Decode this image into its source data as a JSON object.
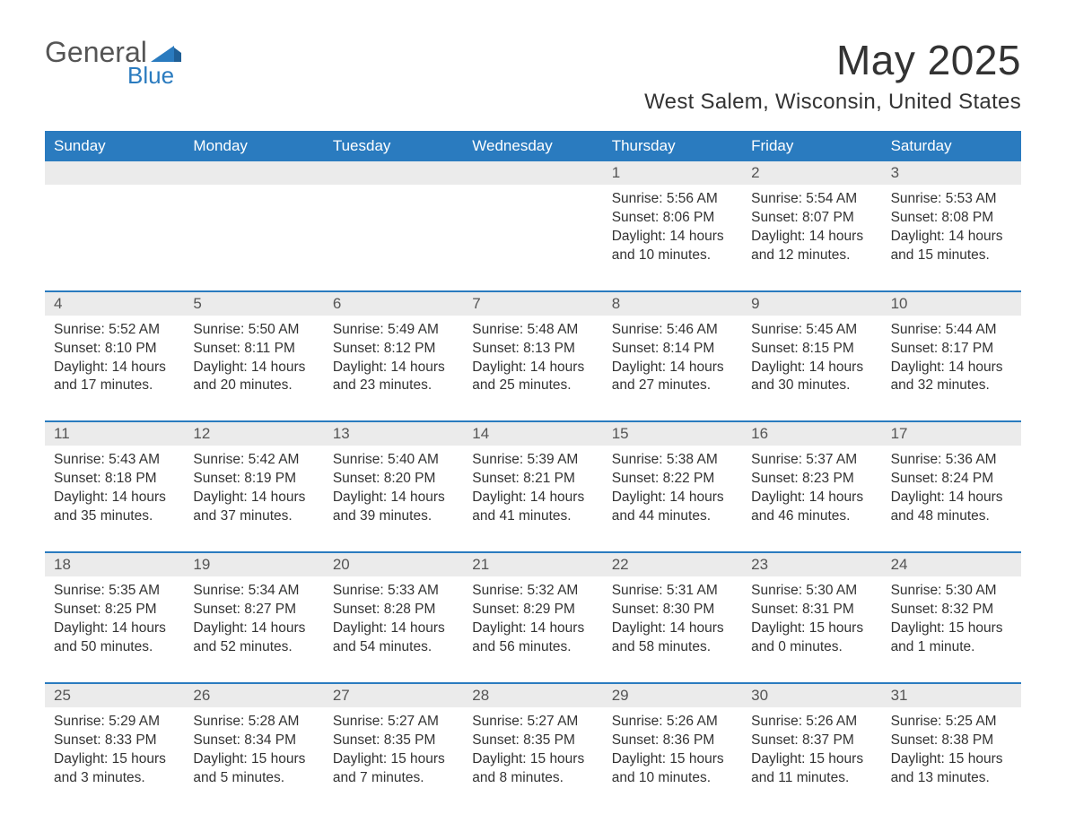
{
  "logo": {
    "word1": "General",
    "word2": "Blue"
  },
  "title": "May 2025",
  "location": "West Salem, Wisconsin, United States",
  "colors": {
    "header_bg": "#2a7bbf",
    "header_text": "#ffffff",
    "band_bg": "#ebebeb",
    "rule": "#2a7bbf",
    "text": "#333333",
    "muted": "#555555",
    "page_bg": "#ffffff"
  },
  "weekdays": [
    "Sunday",
    "Monday",
    "Tuesday",
    "Wednesday",
    "Thursday",
    "Friday",
    "Saturday"
  ],
  "weeks": [
    [
      null,
      null,
      null,
      null,
      {
        "n": "1",
        "sunrise": "5:56 AM",
        "sunset": "8:06 PM",
        "daylight": "14 hours and 10 minutes."
      },
      {
        "n": "2",
        "sunrise": "5:54 AM",
        "sunset": "8:07 PM",
        "daylight": "14 hours and 12 minutes."
      },
      {
        "n": "3",
        "sunrise": "5:53 AM",
        "sunset": "8:08 PM",
        "daylight": "14 hours and 15 minutes."
      }
    ],
    [
      {
        "n": "4",
        "sunrise": "5:52 AM",
        "sunset": "8:10 PM",
        "daylight": "14 hours and 17 minutes."
      },
      {
        "n": "5",
        "sunrise": "5:50 AM",
        "sunset": "8:11 PM",
        "daylight": "14 hours and 20 minutes."
      },
      {
        "n": "6",
        "sunrise": "5:49 AM",
        "sunset": "8:12 PM",
        "daylight": "14 hours and 23 minutes."
      },
      {
        "n": "7",
        "sunrise": "5:48 AM",
        "sunset": "8:13 PM",
        "daylight": "14 hours and 25 minutes."
      },
      {
        "n": "8",
        "sunrise": "5:46 AM",
        "sunset": "8:14 PM",
        "daylight": "14 hours and 27 minutes."
      },
      {
        "n": "9",
        "sunrise": "5:45 AM",
        "sunset": "8:15 PM",
        "daylight": "14 hours and 30 minutes."
      },
      {
        "n": "10",
        "sunrise": "5:44 AM",
        "sunset": "8:17 PM",
        "daylight": "14 hours and 32 minutes."
      }
    ],
    [
      {
        "n": "11",
        "sunrise": "5:43 AM",
        "sunset": "8:18 PM",
        "daylight": "14 hours and 35 minutes."
      },
      {
        "n": "12",
        "sunrise": "5:42 AM",
        "sunset": "8:19 PM",
        "daylight": "14 hours and 37 minutes."
      },
      {
        "n": "13",
        "sunrise": "5:40 AM",
        "sunset": "8:20 PM",
        "daylight": "14 hours and 39 minutes."
      },
      {
        "n": "14",
        "sunrise": "5:39 AM",
        "sunset": "8:21 PM",
        "daylight": "14 hours and 41 minutes."
      },
      {
        "n": "15",
        "sunrise": "5:38 AM",
        "sunset": "8:22 PM",
        "daylight": "14 hours and 44 minutes."
      },
      {
        "n": "16",
        "sunrise": "5:37 AM",
        "sunset": "8:23 PM",
        "daylight": "14 hours and 46 minutes."
      },
      {
        "n": "17",
        "sunrise": "5:36 AM",
        "sunset": "8:24 PM",
        "daylight": "14 hours and 48 minutes."
      }
    ],
    [
      {
        "n": "18",
        "sunrise": "5:35 AM",
        "sunset": "8:25 PM",
        "daylight": "14 hours and 50 minutes."
      },
      {
        "n": "19",
        "sunrise": "5:34 AM",
        "sunset": "8:27 PM",
        "daylight": "14 hours and 52 minutes."
      },
      {
        "n": "20",
        "sunrise": "5:33 AM",
        "sunset": "8:28 PM",
        "daylight": "14 hours and 54 minutes."
      },
      {
        "n": "21",
        "sunrise": "5:32 AM",
        "sunset": "8:29 PM",
        "daylight": "14 hours and 56 minutes."
      },
      {
        "n": "22",
        "sunrise": "5:31 AM",
        "sunset": "8:30 PM",
        "daylight": "14 hours and 58 minutes."
      },
      {
        "n": "23",
        "sunrise": "5:30 AM",
        "sunset": "8:31 PM",
        "daylight": "15 hours and 0 minutes."
      },
      {
        "n": "24",
        "sunrise": "5:30 AM",
        "sunset": "8:32 PM",
        "daylight": "15 hours and 1 minute."
      }
    ],
    [
      {
        "n": "25",
        "sunrise": "5:29 AM",
        "sunset": "8:33 PM",
        "daylight": "15 hours and 3 minutes."
      },
      {
        "n": "26",
        "sunrise": "5:28 AM",
        "sunset": "8:34 PM",
        "daylight": "15 hours and 5 minutes."
      },
      {
        "n": "27",
        "sunrise": "5:27 AM",
        "sunset": "8:35 PM",
        "daylight": "15 hours and 7 minutes."
      },
      {
        "n": "28",
        "sunrise": "5:27 AM",
        "sunset": "8:35 PM",
        "daylight": "15 hours and 8 minutes."
      },
      {
        "n": "29",
        "sunrise": "5:26 AM",
        "sunset": "8:36 PM",
        "daylight": "15 hours and 10 minutes."
      },
      {
        "n": "30",
        "sunrise": "5:26 AM",
        "sunset": "8:37 PM",
        "daylight": "15 hours and 11 minutes."
      },
      {
        "n": "31",
        "sunrise": "5:25 AM",
        "sunset": "8:38 PM",
        "daylight": "15 hours and 13 minutes."
      }
    ]
  ],
  "labels": {
    "sunrise": "Sunrise: ",
    "sunset": "Sunset: ",
    "daylight": "Daylight: "
  }
}
